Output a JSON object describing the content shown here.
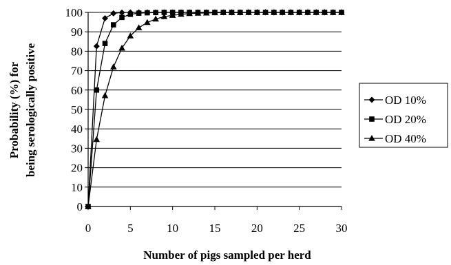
{
  "chart_data": {
    "type": "line",
    "title": "",
    "xlabel": "Number of pigs sampled per herd",
    "ylabel_lines": [
      "Probability (%)  for",
      "being serologically positive"
    ],
    "xlim": [
      0,
      30
    ],
    "ylim": [
      0,
      100
    ],
    "x_ticks": [
      0,
      5,
      10,
      15,
      20,
      25,
      30
    ],
    "y_ticks": [
      0,
      10,
      20,
      30,
      40,
      50,
      60,
      70,
      80,
      90,
      100
    ],
    "grid": "horizontal",
    "legend_position": "right",
    "x": [
      0,
      1,
      2,
      3,
      4,
      5,
      6,
      7,
      8,
      9,
      10,
      11,
      12,
      13,
      14,
      15,
      16,
      17,
      18,
      19,
      20,
      21,
      22,
      23,
      24,
      25,
      26,
      27,
      28,
      29,
      30
    ],
    "series": [
      {
        "name": "OD 10%",
        "marker": "diamond",
        "values": [
          0,
          82.6,
          97.0,
          99.5,
          99.9,
          100,
          100,
          100,
          100,
          100,
          100,
          100,
          100,
          100,
          100,
          100,
          100,
          100,
          100,
          100,
          100,
          100,
          100,
          100,
          100,
          100,
          100,
          100,
          100,
          100,
          100
        ]
      },
      {
        "name": "OD 20%",
        "marker": "square",
        "values": [
          0,
          60,
          84,
          93.6,
          97.4,
          99.0,
          99.6,
          99.8,
          99.9,
          100,
          100,
          100,
          100,
          100,
          100,
          100,
          100,
          100,
          100,
          100,
          100,
          100,
          100,
          100,
          100,
          100,
          100,
          100,
          100,
          100,
          100
        ]
      },
      {
        "name": "OD 40%",
        "marker": "triangle",
        "values": [
          0,
          34.5,
          57.1,
          71.9,
          81.6,
          87.9,
          92.1,
          94.8,
          96.6,
          97.8,
          98.5,
          99.0,
          99.4,
          99.6,
          99.7,
          99.8,
          99.9,
          99.9,
          99.9,
          100,
          100,
          100,
          100,
          100,
          100,
          100,
          100,
          100,
          100,
          100,
          100
        ]
      }
    ]
  }
}
